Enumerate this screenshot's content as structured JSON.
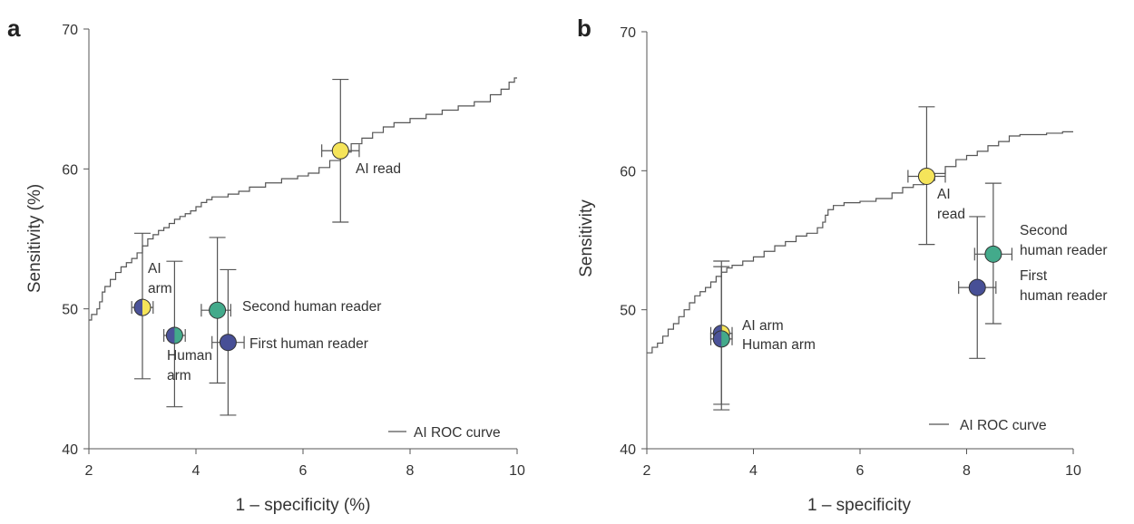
{
  "chart_data": [
    {
      "type": "scatter",
      "panel_label": "a",
      "xlabel": "1 – specificity (%)",
      "ylabel": "Sensitivity (%)",
      "xlim": [
        2,
        10
      ],
      "ylim": [
        40,
        70
      ],
      "xticks": [
        "2",
        "4",
        "6",
        "8",
        "10"
      ],
      "yticks": [
        "40",
        "50",
        "60",
        "70"
      ],
      "legend": {
        "label": "AI ROC curve",
        "position": "bottom-right"
      },
      "roc_curve": [
        [
          2,
          49.2
        ],
        [
          2.05,
          49.6
        ],
        [
          2.15,
          50
        ],
        [
          2.2,
          50.5
        ],
        [
          2.25,
          51.2
        ],
        [
          2.3,
          51.6
        ],
        [
          2.4,
          52.1
        ],
        [
          2.5,
          52.6
        ],
        [
          2.6,
          53
        ],
        [
          2.7,
          53.3
        ],
        [
          2.8,
          53.6
        ],
        [
          2.9,
          54
        ],
        [
          3,
          54.5
        ],
        [
          3.1,
          55
        ],
        [
          3.2,
          55.3
        ],
        [
          3.3,
          55.6
        ],
        [
          3.4,
          55.8
        ],
        [
          3.5,
          56.1
        ],
        [
          3.6,
          56.4
        ],
        [
          3.7,
          56.6
        ],
        [
          3.8,
          56.8
        ],
        [
          3.9,
          57
        ],
        [
          4,
          57.3
        ],
        [
          4.1,
          57.6
        ],
        [
          4.2,
          57.8
        ],
        [
          4.3,
          58
        ],
        [
          4.6,
          58.2
        ],
        [
          4.8,
          58.4
        ],
        [
          5,
          58.7
        ],
        [
          5.3,
          59
        ],
        [
          5.6,
          59.3
        ],
        [
          5.9,
          59.5
        ],
        [
          6.1,
          59.7
        ],
        [
          6.3,
          60.1
        ],
        [
          6.5,
          60.6
        ],
        [
          6.7,
          61.2
        ],
        [
          6.9,
          61.8
        ],
        [
          7.1,
          62.2
        ],
        [
          7.3,
          62.6
        ],
        [
          7.5,
          63
        ],
        [
          7.7,
          63.3
        ],
        [
          8,
          63.6
        ],
        [
          8.3,
          63.9
        ],
        [
          8.6,
          64.2
        ],
        [
          8.9,
          64.5
        ],
        [
          9.2,
          64.8
        ],
        [
          9.5,
          65.3
        ],
        [
          9.7,
          65.7
        ],
        [
          9.85,
          66.2
        ],
        [
          9.95,
          66.5
        ],
        [
          10,
          66.5
        ]
      ],
      "points": [
        {
          "label": "AI read",
          "x": 6.7,
          "y": 61.3,
          "xerr": [
            6.35,
            7.05
          ],
          "yerr": [
            56.2,
            66.4
          ],
          "colors": [
            "#f5e45a"
          ]
        },
        {
          "label": "AI arm",
          "x": 3.0,
          "y": 50.1,
          "xerr": [
            2.8,
            3.2
          ],
          "yerr": [
            45.0,
            55.4
          ],
          "colors": [
            "#4b5399",
            "#f5e45a"
          ]
        },
        {
          "label": "Second human reader",
          "x": 4.4,
          "y": 49.9,
          "xerr": [
            4.1,
            4.65
          ],
          "yerr": [
            44.7,
            55.1
          ],
          "colors": [
            "#43aa8b"
          ]
        },
        {
          "label": "Human arm",
          "x": 3.6,
          "y": 48.1,
          "xerr": [
            3.4,
            3.8
          ],
          "yerr": [
            43.0,
            53.4
          ],
          "colors": [
            "#4b5399",
            "#43aa8b"
          ]
        },
        {
          "label": "First human reader",
          "x": 4.6,
          "y": 47.6,
          "xerr": [
            4.3,
            4.9
          ],
          "yerr": [
            42.4,
            52.8
          ],
          "colors": [
            "#474f96"
          ]
        }
      ]
    },
    {
      "type": "scatter",
      "panel_label": "b",
      "xlabel": "1 – specificity",
      "ylabel": "Sensitivity",
      "xlim": [
        2,
        10
      ],
      "ylim": [
        40,
        70
      ],
      "xticks": [
        "2",
        "4",
        "6",
        "8",
        "10"
      ],
      "yticks": [
        "40",
        "50",
        "60",
        "70"
      ],
      "legend": {
        "label": "AI ROC curve",
        "position": "bottom-right"
      },
      "roc_curve": [
        [
          2,
          46.9
        ],
        [
          2.1,
          47.3
        ],
        [
          2.2,
          47.6
        ],
        [
          2.3,
          48.1
        ],
        [
          2.4,
          48.6
        ],
        [
          2.5,
          49
        ],
        [
          2.6,
          49.5
        ],
        [
          2.7,
          50
        ],
        [
          2.8,
          50.5
        ],
        [
          2.9,
          51
        ],
        [
          3,
          51.3
        ],
        [
          3.1,
          51.6
        ],
        [
          3.2,
          52
        ],
        [
          3.3,
          52.4
        ],
        [
          3.4,
          52.7
        ],
        [
          3.5,
          53
        ],
        [
          3.6,
          53.2
        ],
        [
          3.8,
          53.5
        ],
        [
          4,
          53.8
        ],
        [
          4.2,
          54.2
        ],
        [
          4.4,
          54.6
        ],
        [
          4.6,
          54.9
        ],
        [
          4.8,
          55.3
        ],
        [
          5,
          55.5
        ],
        [
          5.2,
          55.9
        ],
        [
          5.3,
          56.3
        ],
        [
          5.35,
          56.8
        ],
        [
          5.4,
          57.2
        ],
        [
          5.5,
          57.5
        ],
        [
          5.7,
          57.7
        ],
        [
          6,
          57.8
        ],
        [
          6.3,
          58
        ],
        [
          6.6,
          58.4
        ],
        [
          6.8,
          58.8
        ],
        [
          7,
          59
        ],
        [
          7.2,
          59.3
        ],
        [
          7.4,
          59.8
        ],
        [
          7.6,
          60.3
        ],
        [
          7.8,
          60.8
        ],
        [
          8,
          61.1
        ],
        [
          8.2,
          61.4
        ],
        [
          8.4,
          61.8
        ],
        [
          8.6,
          62.1
        ],
        [
          8.8,
          62.5
        ],
        [
          9,
          62.6
        ],
        [
          9.5,
          62.7
        ],
        [
          9.8,
          62.8
        ],
        [
          10,
          62.8
        ]
      ],
      "points": [
        {
          "label": "AI read",
          "x": 7.25,
          "y": 59.6,
          "xerr": [
            6.9,
            7.6
          ],
          "yerr": [
            54.7,
            64.6
          ],
          "colors": [
            "#f5e45a"
          ]
        },
        {
          "label": "Second human reader",
          "x": 8.5,
          "y": 54.0,
          "xerr": [
            8.15,
            8.85
          ],
          "yerr": [
            49.0,
            59.1
          ],
          "colors": [
            "#43aa8b"
          ]
        },
        {
          "label": "First human reader",
          "x": 8.2,
          "y": 51.6,
          "xerr": [
            7.85,
            8.55
          ],
          "yerr": [
            46.5,
            56.7
          ],
          "colors": [
            "#474f96"
          ]
        },
        {
          "label": "AI arm",
          "x": 3.4,
          "y": 48.3,
          "xerr": [
            3.2,
            3.6
          ],
          "yerr": [
            43.2,
            53.5
          ],
          "colors": [
            "#4b5399",
            "#f5e45a"
          ]
        },
        {
          "label": "Human arm",
          "x": 3.4,
          "y": 47.9,
          "xerr": [
            3.2,
            3.6
          ],
          "yerr": [
            42.8,
            53.1
          ],
          "colors": [
            "#4b5399",
            "#43aa8b"
          ]
        }
      ]
    }
  ]
}
